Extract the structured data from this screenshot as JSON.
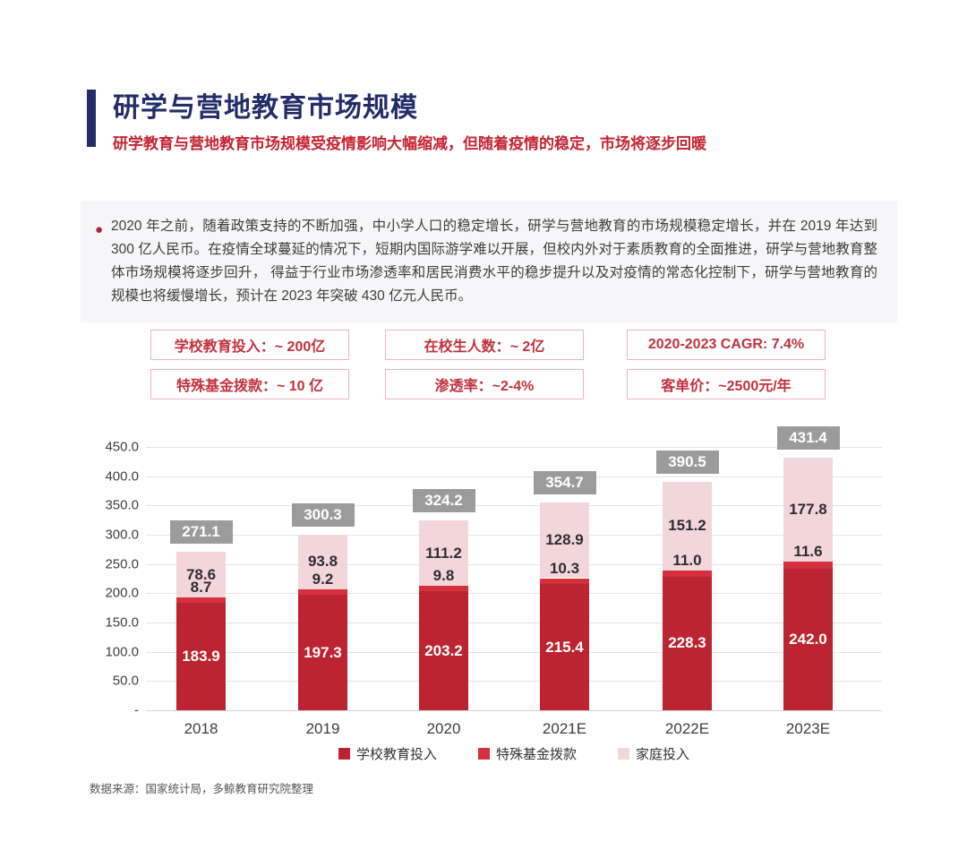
{
  "header": {
    "title": "研学与营地教育市场规模",
    "subtitle": "研学教育与营地教育市场规模受疫情影响大幅缩减，但随着疫情的稳定，市场将逐步回暖"
  },
  "summary": {
    "bullet": "●",
    "text": "2020 年之前，随着政策支持的不断加强，中小学人口的稳定增长，研学与营地教育的市场规模稳定增长，并在 2019 年达到 300 亿人民币。在疫情全球蔓延的情况下，短期内国际游学难以开展，但校内外对于素质教育的全面推进，研学与营地教育整体市场规模将逐步回升， 得益于行业市场渗透率和居民消费水平的稳步提升以及对疫情的常态化控制下，研学与营地教育的规模也将缓慢增长，预计在 2023 年突破 430 亿元人民币。"
  },
  "stats": [
    {
      "label": "学校教育投入：~ 200亿"
    },
    {
      "label": "在校生人数：~ 2亿"
    },
    {
      "label": "2020-2023 CAGR: 7.4%"
    },
    {
      "label": "特殊基金拨款：~ 10 亿"
    },
    {
      "label": "渗透率：~2-4%"
    },
    {
      "label": "客单价：~2500元/年"
    }
  ],
  "chart_data": {
    "type": "bar",
    "stacked": true,
    "categories": [
      "2018",
      "2019",
      "2020",
      "2021E",
      "2022E",
      "2023E"
    ],
    "series": [
      {
        "name": "学校教育投入",
        "color": "#bc2431",
        "values": [
          183.9,
          197.3,
          203.2,
          215.4,
          228.3,
          242.0
        ]
      },
      {
        "name": "特殊基金拨款",
        "color": "#d62f3d",
        "values": [
          8.7,
          9.2,
          9.8,
          10.3,
          11.0,
          11.6
        ]
      },
      {
        "name": "家庭投入",
        "color": "#f3d6d9",
        "values": [
          78.6,
          93.8,
          111.2,
          128.9,
          151.2,
          177.8
        ]
      }
    ],
    "totals": [
      271.1,
      300.3,
      324.2,
      354.7,
      390.5,
      431.4
    ],
    "y_ticks": [
      "450.0",
      "400.0",
      "350.0",
      "300.0",
      "250.0",
      "200.0",
      "150.0",
      "100.0",
      "50.0",
      "-"
    ],
    "ylim": [
      0,
      450
    ],
    "grid": true,
    "legend_position": "bottom",
    "colors": {
      "total_label_bg": "#9b9b9b",
      "grid": "#e4e4e4",
      "axis_text": "#3f3f3f"
    }
  },
  "footer": {
    "source": "数据来源：国家统计局，多鲸教育研究院整理"
  }
}
